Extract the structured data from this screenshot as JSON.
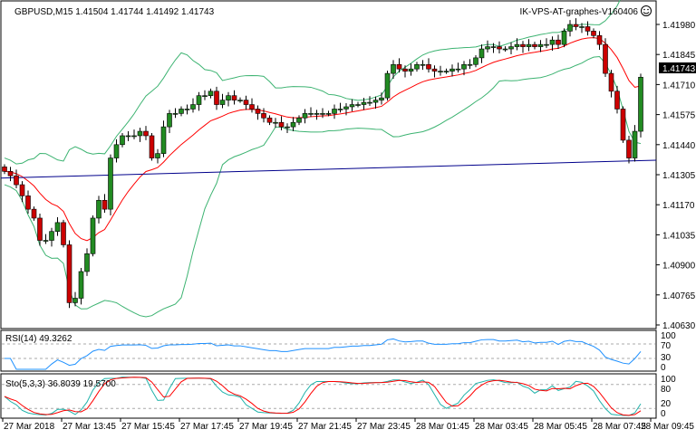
{
  "header": {
    "symbol_info": "GBPUSD,M15  1.41504 1.41744 1.41492 1.41743",
    "expert_label": "IK-VPS-AT-graphes-V160406",
    "expert_icon": "smiley-icon"
  },
  "colors": {
    "bull": "#228B22",
    "bear": "#CC0000",
    "bollinger": "#3CB371",
    "fast_ma": "#FF0000",
    "slow_ma": "#00008B",
    "rsi": "#1E90FF",
    "sto_main": "#20B2AA",
    "sto_signal": "#FF0000",
    "price_tag_bg": "#000000"
  },
  "chart_data": {
    "type": "candlestick",
    "symbol": "GBPUSD",
    "timeframe": "M15",
    "current_price": "1.41743",
    "ylim": [
      1.4063,
      1.4198
    ],
    "yticks": [
      "1.41980",
      "1.41845",
      "1.41710",
      "1.41575",
      "1.41440",
      "1.41305",
      "1.41170",
      "1.41035",
      "1.40900",
      "1.40765",
      "1.40630"
    ],
    "xticks": [
      "27 Mar 2018",
      "27 Mar 13:45",
      "27 Mar 15:45",
      "27 Mar 17:45",
      "27 Mar 19:45",
      "27 Mar 21:45",
      "27 Mar 23:45",
      "28 Mar 01:45",
      "28 Mar 03:45",
      "28 Mar 05:45",
      "28 Mar 07:45",
      "28 Mar 09:45"
    ],
    "closes": [
      1.4132,
      1.413,
      1.4126,
      1.4121,
      1.4115,
      1.4111,
      1.4101,
      1.4101,
      1.4105,
      1.4109,
      1.4099,
      1.4073,
      1.4075,
      1.4087,
      1.4095,
      1.4111,
      1.4119,
      1.4115,
      1.4138,
      1.4144,
      1.4148,
      1.4148,
      1.4148,
      1.415,
      1.4148,
      1.4138,
      1.414,
      1.4152,
      1.4158,
      1.4158,
      1.416,
      1.416,
      1.4162,
      1.4166,
      1.4166,
      1.4168,
      1.4162,
      1.4164,
      1.4166,
      1.4164,
      1.4164,
      1.4162,
      1.416,
      1.4158,
      1.4156,
      1.4154,
      1.4154,
      1.4152,
      1.4152,
      1.4154,
      1.4156,
      1.4158,
      1.4158,
      1.4158,
      1.4158,
      1.4158,
      1.416,
      1.416,
      1.4161,
      1.4162,
      1.4162,
      1.4163,
      1.4163,
      1.4164,
      1.4165,
      1.4176,
      1.418,
      1.4178,
      1.4177,
      1.4178,
      1.418,
      1.418,
      1.4178,
      1.4177,
      1.4177,
      1.4177,
      1.4178,
      1.4178,
      1.418,
      1.418,
      1.4183,
      1.4187,
      1.4188,
      1.4188,
      1.4187,
      1.4187,
      1.4188,
      1.4189,
      1.4188,
      1.4189,
      1.4188,
      1.4189,
      1.4189,
      1.4191,
      1.4189,
      1.4195,
      1.4198,
      1.4197,
      1.4197,
      1.4195,
      1.4193,
      1.4189,
      1.4176,
      1.4168,
      1.416,
      1.4146,
      1.4138,
      1.415,
      1.41743
    ],
    "slow_ma": [
      1.4129,
      1.4137
    ],
    "rsi": {
      "label": "RSI(14) 49.3262",
      "levels": [
        "100",
        "70",
        "30",
        "0"
      ]
    },
    "stochastic": {
      "label": "Sto(5,3,3) 36.8039 19.5700",
      "levels": [
        "100",
        "80",
        "20",
        "0"
      ]
    }
  }
}
